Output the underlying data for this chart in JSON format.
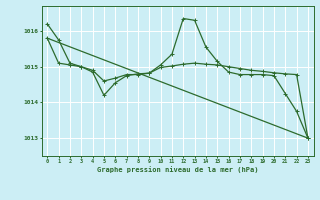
{
  "background_color": "#cceef5",
  "grid_color": "#ffffff",
  "line_color": "#2d6b2d",
  "xlabel": "Graphe pression niveau de la mer (hPa)",
  "xlim": [
    -0.5,
    23.5
  ],
  "ylim": [
    1012.5,
    1016.7
  ],
  "yticks": [
    1013,
    1014,
    1015,
    1016
  ],
  "xticks": [
    0,
    1,
    2,
    3,
    4,
    5,
    6,
    7,
    8,
    9,
    10,
    11,
    12,
    13,
    14,
    15,
    16,
    17,
    18,
    19,
    20,
    21,
    22,
    23
  ],
  "line1_x": [
    0,
    1,
    2,
    3,
    4,
    5,
    6,
    7,
    8,
    9,
    10,
    11,
    12,
    13,
    14,
    15,
    16,
    17,
    18,
    19,
    20,
    21,
    22,
    23
  ],
  "line1_y": [
    1016.2,
    1015.75,
    1015.1,
    1015.0,
    1014.85,
    1014.2,
    1014.55,
    1014.75,
    1014.8,
    1014.82,
    1015.05,
    1015.35,
    1016.35,
    1016.3,
    1015.55,
    1015.15,
    1014.85,
    1014.78,
    1014.78,
    1014.78,
    1014.75,
    1014.25,
    1013.75,
    1013.0
  ],
  "line2_x": [
    0,
    1,
    2,
    3,
    4,
    5,
    6,
    7,
    8,
    9,
    10,
    11,
    12,
    13,
    14,
    15,
    16,
    17,
    18,
    19,
    20,
    21,
    22,
    23
  ],
  "line2_y": [
    1015.8,
    1015.1,
    1015.05,
    1015.0,
    1014.9,
    1014.6,
    1014.68,
    1014.78,
    1014.78,
    1014.82,
    1014.98,
    1015.02,
    1015.07,
    1015.1,
    1015.07,
    1015.05,
    1015.0,
    1014.95,
    1014.9,
    1014.87,
    1014.83,
    1014.8,
    1014.78,
    1013.0
  ],
  "line3_x": [
    0,
    23
  ],
  "line3_y": [
    1015.8,
    1013.0
  ]
}
